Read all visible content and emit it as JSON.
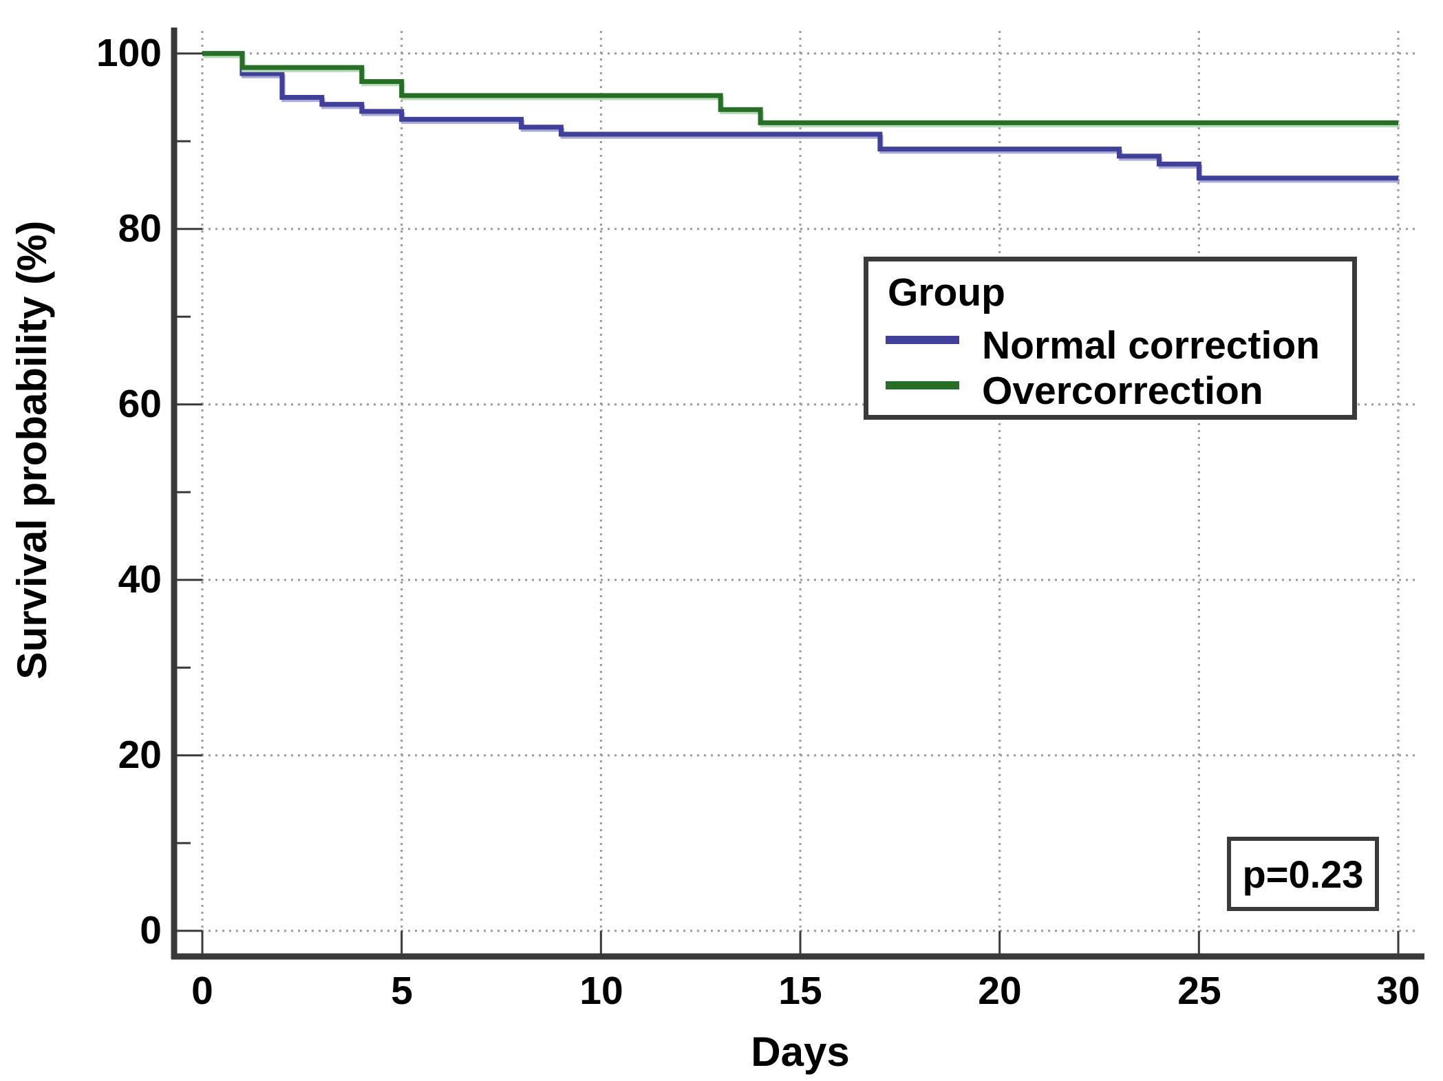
{
  "chart_data": {
    "type": "line",
    "subtype": "kaplan-meier-step",
    "xlabel": "Days",
    "ylabel": "Survival probability (%)",
    "xlim": [
      0,
      30
    ],
    "ylim": [
      0,
      100
    ],
    "x_ticks": [
      0,
      5,
      10,
      15,
      20,
      25,
      30
    ],
    "x_tick_labels": [
      "0",
      "5",
      "10",
      "15",
      "20",
      "25",
      "30"
    ],
    "y_ticks": [
      100,
      80,
      60,
      40,
      20,
      0
    ],
    "y_tick_labels": [
      "100",
      "80",
      "60",
      "40",
      "20",
      "0"
    ],
    "y_minor_ticks": [
      90,
      70,
      50,
      30,
      10
    ],
    "grid": "dotted",
    "grid_color": "#9a9a9a",
    "axis_color": "#3a3a3a",
    "end_day": 30,
    "series": [
      {
        "name": "Normal correction",
        "color": "#40409a",
        "halo_color": "#aaaad8",
        "points": [
          [
            0,
            100
          ],
          [
            1,
            97.7
          ],
          [
            2,
            95.0
          ],
          [
            3,
            94.2
          ],
          [
            4,
            93.4
          ],
          [
            5,
            92.5
          ],
          [
            8,
            91.6
          ],
          [
            9,
            90.8
          ],
          [
            17,
            89.1
          ],
          [
            23,
            88.3
          ],
          [
            24,
            87.4
          ],
          [
            25,
            85.8
          ]
        ]
      },
      {
        "name": "Overcorrection",
        "color": "#276e27",
        "halo_color": "#b7dcb7",
        "points": [
          [
            0,
            100
          ],
          [
            1,
            98.4
          ],
          [
            4,
            96.8
          ],
          [
            5,
            95.2
          ],
          [
            13,
            93.6
          ],
          [
            14,
            92.1
          ]
        ]
      }
    ],
    "legend": {
      "title": "Group",
      "position": "upper right",
      "entries": [
        {
          "label": "Normal correction"
        },
        {
          "label": "Overcorrection"
        }
      ]
    },
    "annotation": {
      "text": "p=0.23"
    }
  }
}
